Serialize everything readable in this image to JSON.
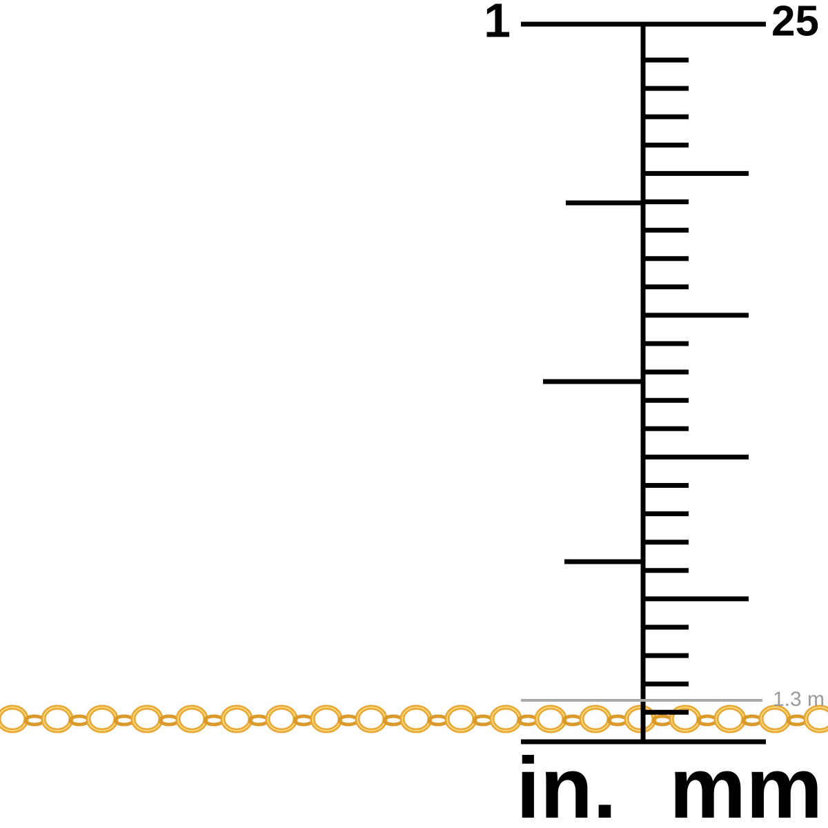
{
  "ruler": {
    "top_left_label": "1",
    "top_right_label": "25",
    "thickness_label": "1.3 m",
    "left_unit": "in.",
    "right_unit": "mm"
  }
}
